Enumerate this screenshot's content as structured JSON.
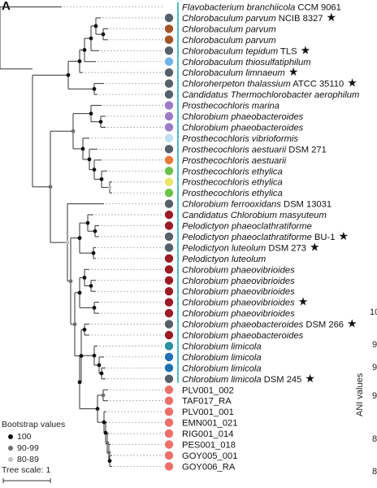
{
  "panel_label": "A",
  "legend": {
    "title": "Bootstrap values",
    "items": [
      {
        "label": "100",
        "color": "#111111"
      },
      {
        "label": "90-99",
        "color": "#6e6e6e"
      },
      {
        "label": "80-89",
        "color": "#c0c0c0"
      }
    ]
  },
  "scale": {
    "label": "Tree scale: 1"
  },
  "ani": {
    "title": "ANI values",
    "ticks": [
      "10",
      "9",
      "9",
      "9",
      "8",
      "8"
    ]
  },
  "colors": {
    "branch": "#333333",
    "guide": "#aaaaaa",
    "cyan_bar": "#2aa7b8",
    "boot_100": "#111111",
    "boot_90": "#6e6e6e",
    "boot_80": "#c0c0c0"
  },
  "taxa": [
    {
      "name": "Flavobacterium branchiicola",
      "suffix": " CCM 9061",
      "star": false,
      "italic": true,
      "color": ""
    },
    {
      "name": "Chlorobaculum parvum",
      "suffix": " NCIB 8327",
      "star": true,
      "italic": true,
      "color": "#56606a"
    },
    {
      "name": "Chlorobaculum parvum",
      "suffix": "",
      "star": false,
      "italic": true,
      "color": "#a35428"
    },
    {
      "name": "Chlorobaculum parvum",
      "suffix": "",
      "star": false,
      "italic": true,
      "color": "#a35428"
    },
    {
      "name": "Chlorobaculum tepidum",
      "suffix": " TLS",
      "star": true,
      "italic": true,
      "color": "#56606a"
    },
    {
      "name": "Chlorobaculum thiosulfatiphilum",
      "suffix": "",
      "star": false,
      "italic": true,
      "color": "#6fb6e8"
    },
    {
      "name": "Chlorobaculum limnaeum",
      "suffix": "",
      "star": true,
      "italic": true,
      "color": "#56606a"
    },
    {
      "name": "Chloroherpeton thalassium",
      "suffix": " ATCC 35110",
      "star": true,
      "italic": true,
      "color": "#56606a"
    },
    {
      "name": "Candidatus Thermochlorobacter aerophilum",
      "suffix": "",
      "star": false,
      "italic": true,
      "color": "#56606a"
    },
    {
      "name": "Prosthecochloris marina",
      "suffix": "",
      "star": false,
      "italic": true,
      "color": "#9b7cc4"
    },
    {
      "name": "Chlorobium phaeobacteroides",
      "suffix": "",
      "star": false,
      "italic": true,
      "color": "#9b7cc4"
    },
    {
      "name": "Chlorobium phaeobacteroides",
      "suffix": "",
      "star": false,
      "italic": true,
      "color": "#9b7cc4"
    },
    {
      "name": "Prosthecochloris vibrioformis",
      "suffix": "",
      "star": false,
      "italic": true,
      "color": "#bfe0f2"
    },
    {
      "name": "Prosthecochloris aestuarii",
      "suffix": " DSM 271",
      "star": false,
      "italic": true,
      "color": "#56606a"
    },
    {
      "name": "Prosthecochloris aestuarii",
      "suffix": "",
      "star": false,
      "italic": true,
      "color": "#e87a3a"
    },
    {
      "name": "Prosthecochloris ethylica",
      "suffix": "",
      "star": false,
      "italic": true,
      "color": "#6cc24a"
    },
    {
      "name": "Prosthecochloris ethylica",
      "suffix": "",
      "star": false,
      "italic": true,
      "color": "#e9e56a"
    },
    {
      "name": "Prosthecochloris ethylica",
      "suffix": "",
      "star": false,
      "italic": true,
      "color": "#6cc24a"
    },
    {
      "name": "Chlorobium ferrooxidans",
      "suffix": " DSM 13031",
      "star": false,
      "italic": true,
      "color": "#56606a"
    },
    {
      "name": "Candidatus Chlorobium masyuteum",
      "suffix": "",
      "star": false,
      "italic": true,
      "color": "#9b1c25"
    },
    {
      "name": "Pelodictyon phaeoclathratiforme",
      "suffix": "",
      "star": false,
      "italic": true,
      "color": "#9b1c25"
    },
    {
      "name": "Pelodictyon phaeoclathratiforme",
      "suffix": " BU-1",
      "star": true,
      "italic": true,
      "color": "#56606a"
    },
    {
      "name": "Pelodictyon luteolum",
      "suffix": " DSM 273",
      "star": true,
      "italic": true,
      "color": "#56606a"
    },
    {
      "name": "Pelodictyon luteolum",
      "suffix": "",
      "star": false,
      "italic": true,
      "color": "#9b1c25"
    },
    {
      "name": "Chlorobium phaeovibrioides",
      "suffix": "",
      "star": false,
      "italic": true,
      "color": "#9b1c25"
    },
    {
      "name": "Chlorobium phaeovibrioides",
      "suffix": "",
      "star": false,
      "italic": true,
      "color": "#9b1c25"
    },
    {
      "name": "Chlorobium phaeovibrioides",
      "suffix": "",
      "star": false,
      "italic": true,
      "color": "#9b1c25"
    },
    {
      "name": "Chlorobium phaeovibrioides",
      "suffix": "",
      "star": true,
      "italic": true,
      "color": "#9b1c25"
    },
    {
      "name": "Chlorobium phaeovibrioides",
      "suffix": "",
      "star": false,
      "italic": true,
      "color": "#9b1c25"
    },
    {
      "name": "Chlorobium phaeobacteroides",
      "suffix": " DSM 266",
      "star": true,
      "italic": true,
      "color": "#56606a"
    },
    {
      "name": "Chlorobium phaeobacteroides",
      "suffix": "",
      "star": false,
      "italic": true,
      "color": "#9b1c25"
    },
    {
      "name": "Chlorobium limicola",
      "suffix": "",
      "star": false,
      "italic": true,
      "color": "#2c8fa3"
    },
    {
      "name": "Chlorobium limicola",
      "suffix": "",
      "star": false,
      "italic": true,
      "color": "#1f6fb2"
    },
    {
      "name": "Chlorobium limicola",
      "suffix": "",
      "star": false,
      "italic": true,
      "color": "#1f6fb2"
    },
    {
      "name": "Chlorobium limicola",
      "suffix": " DSM 245",
      "star": true,
      "italic": true,
      "color": "#56606a"
    },
    {
      "name": "PLV001_002",
      "suffix": "",
      "star": false,
      "italic": false,
      "color": "#ec6f6a"
    },
    {
      "name": "TAF017_RA",
      "suffix": "",
      "star": false,
      "italic": false,
      "color": "#ec6f6a"
    },
    {
      "name": "PLV001_001",
      "suffix": "",
      "star": false,
      "italic": false,
      "color": "#ec6f6a"
    },
    {
      "name": "EMN001_021",
      "suffix": "",
      "star": false,
      "italic": false,
      "color": "#ec6f6a"
    },
    {
      "name": "RIG001_014",
      "suffix": "",
      "star": false,
      "italic": false,
      "color": "#ec6f6a"
    },
    {
      "name": "PES001_018",
      "suffix": "",
      "star": false,
      "italic": false,
      "color": "#ec6f6a"
    },
    {
      "name": "GOY005_001",
      "suffix": "",
      "star": false,
      "italic": false,
      "color": "#ec6f6a"
    },
    {
      "name": "GOY006_RA",
      "suffix": "",
      "star": false,
      "italic": false,
      "color": "#ec6f6a"
    }
  ],
  "nodes": [
    {
      "parent": -1,
      "children": [
        0,
        "n1"
      ],
      "boot": null
    },
    {
      "id": "n1",
      "children": [
        "n2",
        "n3"
      ],
      "boot": null
    },
    {
      "id": "n2",
      "children": [
        "n4",
        "n5"
      ],
      "boot": "100"
    },
    {
      "id": "n4",
      "children": [
        "n6",
        6
      ],
      "boot": "100"
    },
    {
      "id": "n6",
      "children": [
        "n7",
        5
      ],
      "boot": "100"
    },
    {
      "id": "n7",
      "children": [
        "n8",
        4
      ],
      "boot": "100"
    },
    {
      "id": "n8",
      "children": [
        1,
        "n9"
      ],
      "boot": "100"
    },
    {
      "id": "n9",
      "children": [
        2,
        3
      ],
      "boot": "100"
    },
    {
      "id": "n5",
      "children": [
        7,
        8
      ],
      "boot": "100"
    },
    {
      "id": "n3",
      "children": [
        "n10",
        "n11"
      ],
      "boot": "90-99"
    },
    {
      "id": "n10",
      "children": [
        "n12",
        "n13"
      ],
      "boot": "90-99"
    },
    {
      "id": "n12",
      "children": [
        9,
        "n14"
      ],
      "boot": "100"
    },
    {
      "id": "n14",
      "children": [
        10,
        11
      ],
      "boot": "100"
    },
    {
      "id": "n13",
      "children": [
        12,
        "n15"
      ],
      "boot": "100"
    },
    {
      "id": "n15",
      "children": [
        13,
        "n16"
      ],
      "boot": "100"
    },
    {
      "id": "n16",
      "children": [
        14,
        "n17"
      ],
      "boot": "100"
    },
    {
      "id": "n17",
      "children": [
        15,
        "n18"
      ],
      "boot": "100"
    },
    {
      "id": "n18",
      "children": [
        16,
        17
      ],
      "boot": "80-89"
    },
    {
      "id": "n11",
      "children": [
        18,
        "n19"
      ],
      "boot": "80-89"
    },
    {
      "id": "n19",
      "children": [
        "n20",
        "n21"
      ],
      "boot": "90-99"
    },
    {
      "id": "n20",
      "children": [
        "n22",
        "n23"
      ],
      "boot": "100"
    },
    {
      "id": "n22",
      "children": [
        19,
        "n24"
      ],
      "boot": "100"
    },
    {
      "id": "n24",
      "children": [
        20,
        21
      ],
      "boot": "100"
    },
    {
      "id": "n23",
      "children": [
        22,
        23
      ],
      "boot": "100"
    },
    {
      "id": "n21",
      "children": [
        "n25",
        "n26"
      ],
      "boot": "90-99"
    },
    {
      "id": "n25",
      "children": [
        "n27",
        "n28"
      ],
      "boot": "100"
    },
    {
      "id": "n27",
      "children": [
        24,
        "n29"
      ],
      "boot": "100"
    },
    {
      "id": "n29",
      "children": [
        25,
        26
      ],
      "boot": "100"
    },
    {
      "id": "n28",
      "children": [
        27,
        28
      ],
      "boot": "100"
    },
    {
      "id": "n26",
      "children": [
        "n30",
        "n31"
      ],
      "boot": "100"
    },
    {
      "id": "n30",
      "children": [
        29,
        30
      ],
      "boot": "100"
    },
    {
      "id": "n31",
      "children": [
        "n32",
        "n33"
      ],
      "boot": "100"
    },
    {
      "id": "n32",
      "children": [
        31,
        "n34"
      ],
      "boot": "100"
    },
    {
      "id": "n34",
      "children": [
        32,
        "n35"
      ],
      "boot": "100"
    },
    {
      "id": "n35",
      "children": [
        33,
        34
      ],
      "boot": "100"
    },
    {
      "id": "n33",
      "children": [
        "n36",
        "n37"
      ],
      "boot": "100"
    },
    {
      "id": "n36",
      "children": [
        35,
        36
      ],
      "boot": "90-99"
    },
    {
      "id": "n37",
      "children": [
        37,
        "n38"
      ],
      "boot": "100"
    },
    {
      "id": "n38",
      "children": [
        38,
        "n39"
      ],
      "boot": "100"
    },
    {
      "id": "n39",
      "children": [
        39,
        "n40"
      ],
      "boot": "90-99"
    },
    {
      "id": "n40",
      "children": [
        40,
        "n41"
      ],
      "boot": "90-99"
    },
    {
      "id": "n41",
      "children": [
        41,
        42
      ],
      "boot": "100"
    }
  ]
}
